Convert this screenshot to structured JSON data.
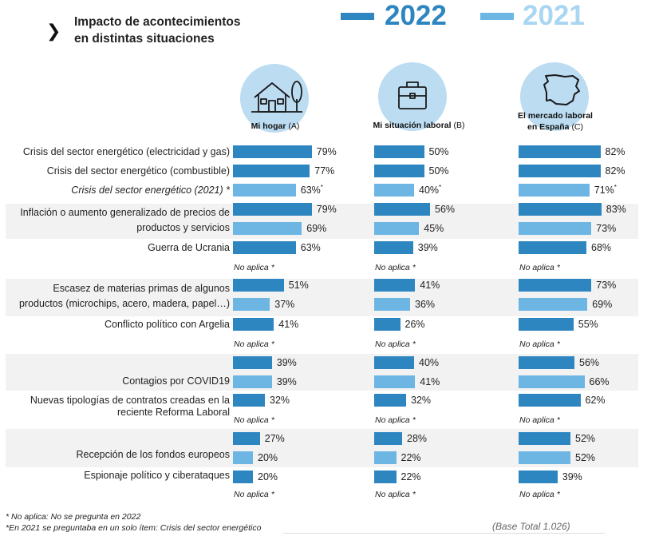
{
  "header": {
    "chevron": "❯",
    "title_line1": "Impacto de acontecimientos",
    "title_line2": "en distintas situaciones",
    "legend_2022": "2022",
    "legend_2021": "2021"
  },
  "colors": {
    "y2022": "#2e86c1",
    "y2021": "#6db6e3",
    "band": "#f2f2f2",
    "circle": "#bcdcf2"
  },
  "columns": [
    {
      "icon": "house-icon",
      "label": "Mi hogar",
      "suffix": "(A)"
    },
    {
      "icon": "briefcase-icon",
      "label": "Mi situación laboral",
      "suffix": "(B)"
    },
    {
      "icon": "spain-map-icon",
      "label": "El mercado laboral",
      "label2": "en España",
      "suffix": "(C)"
    }
  ],
  "na_label": "No aplica *",
  "chart_data": {
    "type": "bar",
    "orientation": "horizontal",
    "title": "Impacto de acontecimientos en distintas situaciones",
    "value_unit": "%",
    "columns": [
      "Mi hogar (A)",
      "Mi situación laboral (B)",
      "El mercado laboral en España (C)"
    ],
    "series": [
      {
        "name": "2022",
        "color": "#2e86c1"
      },
      {
        "name": "2021",
        "color": "#6db6e3"
      }
    ],
    "rows": [
      {
        "label": "Crisis del sector energético (electricidad y gas)",
        "year": "2022",
        "values": [
          79,
          50,
          82
        ]
      },
      {
        "label": "Crisis del sector energético (combustible)",
        "year": "2022",
        "values": [
          77,
          50,
          82
        ]
      },
      {
        "label": "Crisis del sector energético (2021) *",
        "year": "2021",
        "italic": true,
        "values": [
          63,
          40,
          71
        ],
        "star": true
      },
      {
        "label": "Inflación o aumento generalizado de precios de",
        "year": "2022",
        "values": [
          79,
          56,
          83
        ]
      },
      {
        "label": "productos y servicios",
        "year": "2021",
        "values": [
          69,
          45,
          73
        ]
      },
      {
        "label": "Guerra de Ucrania",
        "year": "2022",
        "values": [
          63,
          39,
          68
        ]
      },
      {
        "label": "",
        "year": "2021",
        "na": true
      },
      {
        "label": "Escasez de materias primas de algunos",
        "year": "2022",
        "values": [
          51,
          41,
          73
        ]
      },
      {
        "label": "productos (microchips, acero, madera, papel…)",
        "year": "2021",
        "values": [
          37,
          36,
          69
        ]
      },
      {
        "label": "Conflicto político con Argelia",
        "year": "2022",
        "values": [
          41,
          26,
          55
        ]
      },
      {
        "label": "",
        "year": "2021",
        "na": true
      },
      {
        "label": "",
        "year": "2022",
        "values": [
          39,
          40,
          56
        ]
      },
      {
        "label": "Contagios por COVID19",
        "year": "2021",
        "values": [
          39,
          41,
          66
        ]
      },
      {
        "label": "Nuevas tipologías de contratos creadas en la",
        "year": "2022",
        "values": [
          32,
          32,
          62
        ]
      },
      {
        "label": "reciente Reforma Laboral",
        "year": "2021",
        "na": true
      },
      {
        "label": "",
        "year": "2022",
        "values": [
          27,
          28,
          52
        ]
      },
      {
        "label": "Recepción de los fondos europeos",
        "year": "2021",
        "values": [
          20,
          22,
          52
        ]
      },
      {
        "label": "Espionaje político y ciberataques",
        "year": "2022",
        "values": [
          20,
          22,
          39
        ]
      },
      {
        "label": "",
        "year": "2021",
        "na": true
      }
    ]
  },
  "footer": {
    "note1": "* No aplica: No se pregunta en 2022",
    "note2": "*En 2021 se preguntaba en un solo ítem: Crisis del sector energético",
    "base": "(Base Total 1.026)"
  }
}
